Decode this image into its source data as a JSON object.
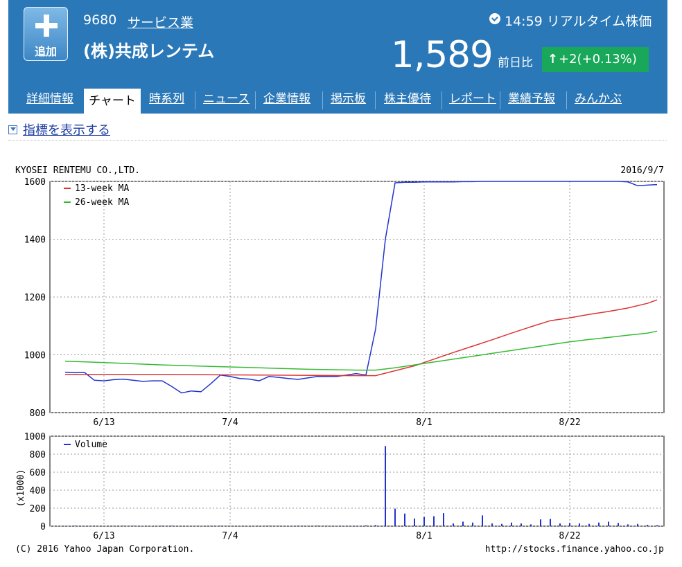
{
  "header": {
    "add_label": "追加",
    "code": "9680",
    "industry": "サービス業",
    "company": "(株)共成レンテム",
    "time": "14:59 リアルタイム株価",
    "price": "1,589",
    "prev_label": "前日比",
    "change": "+2(+0.13%)",
    "change_arrow": "↑",
    "accent": "#2a78b8",
    "up_color": "#19a85a"
  },
  "tabs": [
    {
      "label": "詳細情報"
    },
    {
      "label": "チャート"
    },
    {
      "label": "時系列"
    },
    {
      "label": "ニュース"
    },
    {
      "label": "企業情報"
    },
    {
      "label": "掲示板"
    },
    {
      "label": "株主優待"
    },
    {
      "label": "レポート"
    },
    {
      "label": "業績予報"
    },
    {
      "label": "みんかぶ"
    }
  ],
  "active_tab": 1,
  "indicator_label": "指標を表示する",
  "chart_data": [
    {
      "type": "line",
      "title": "KYOSEI RENTEMU CO.,LTD.",
      "date": "2016/9/7",
      "x_ticks": [
        "6/13",
        "7/4",
        "8/1",
        "8/22"
      ],
      "y_ticks": [
        800,
        1000,
        1200,
        1400,
        1600
      ],
      "ylim": [
        800,
        1600
      ],
      "grid": true,
      "legend_position": "top-left",
      "legend": [
        "13-week MA",
        "26-week MA"
      ],
      "series": [
        {
          "name": "price",
          "color": "#2233cc",
          "values": [
            [
              0,
              940
            ],
            [
              1,
              938
            ],
            [
              2,
              939
            ],
            [
              3,
              912
            ],
            [
              4,
              910
            ],
            [
              5,
              914
            ],
            [
              6,
              916
            ],
            [
              7,
              912
            ],
            [
              8,
              908
            ],
            [
              9,
              910
            ],
            [
              10,
              910
            ],
            [
              11,
              890
            ],
            [
              12,
              868
            ],
            [
              13,
              875
            ],
            [
              14,
              872
            ],
            [
              15,
              900
            ],
            [
              16,
              930
            ],
            [
              17,
              925
            ],
            [
              18,
              918
            ],
            [
              19,
              916
            ],
            [
              20,
              910
            ],
            [
              21,
              925
            ],
            [
              22,
              922
            ],
            [
              23,
              918
            ],
            [
              24,
              915
            ],
            [
              25,
              920
            ],
            [
              26,
              925
            ],
            [
              27,
              925
            ],
            [
              28,
              925
            ],
            [
              29,
              930
            ],
            [
              30,
              935
            ],
            [
              31,
              930
            ],
            [
              32,
              1090
            ],
            [
              33,
              1400
            ],
            [
              34,
              1595
            ],
            [
              35,
              1597
            ],
            [
              36,
              1597
            ],
            [
              37,
              1598
            ],
            [
              38,
              1598
            ],
            [
              39,
              1598
            ],
            [
              40,
              1598
            ],
            [
              41,
              1599
            ],
            [
              42,
              1599
            ],
            [
              43,
              1600
            ],
            [
              44,
              1600
            ],
            [
              45,
              1600
            ],
            [
              46,
              1600
            ],
            [
              47,
              1600
            ],
            [
              48,
              1600
            ],
            [
              49,
              1600
            ],
            [
              50,
              1600
            ],
            [
              51,
              1600
            ],
            [
              52,
              1600
            ],
            [
              53,
              1600
            ],
            [
              54,
              1600
            ],
            [
              55,
              1600
            ],
            [
              56,
              1600
            ],
            [
              57,
              1600
            ],
            [
              58,
              1598
            ],
            [
              59,
              1585
            ],
            [
              60,
              1587
            ],
            [
              61,
              1589
            ]
          ]
        },
        {
          "name": "13-week MA",
          "color": "#dd3333",
          "values": [
            [
              0,
              932
            ],
            [
              10,
              932
            ],
            [
              20,
              930
            ],
            [
              30,
              928
            ],
            [
              32,
              928
            ],
            [
              34,
              945
            ],
            [
              36,
              962
            ],
            [
              38,
              985
            ],
            [
              40,
              1008
            ],
            [
              42,
              1030
            ],
            [
              44,
              1052
            ],
            [
              46,
              1075
            ],
            [
              48,
              1097
            ],
            [
              50,
              1118
            ],
            [
              52,
              1128
            ],
            [
              54,
              1140
            ],
            [
              56,
              1150
            ],
            [
              58,
              1162
            ],
            [
              60,
              1178
            ],
            [
              61,
              1190
            ]
          ]
        },
        {
          "name": "26-week MA",
          "color": "#33bb33",
          "values": [
            [
              0,
              978
            ],
            [
              5,
              972
            ],
            [
              10,
              965
            ],
            [
              15,
              960
            ],
            [
              20,
              955
            ],
            [
              25,
              950
            ],
            [
              30,
              947
            ],
            [
              32,
              947
            ],
            [
              34,
              955
            ],
            [
              36,
              965
            ],
            [
              38,
              975
            ],
            [
              40,
              985
            ],
            [
              42,
              995
            ],
            [
              44,
              1005
            ],
            [
              46,
              1015
            ],
            [
              48,
              1025
            ],
            [
              50,
              1035
            ],
            [
              52,
              1045
            ],
            [
              54,
              1053
            ],
            [
              56,
              1060
            ],
            [
              58,
              1068
            ],
            [
              60,
              1075
            ],
            [
              61,
              1082
            ]
          ]
        }
      ]
    },
    {
      "type": "bar",
      "x_ticks": [
        "6/13",
        "7/4",
        "8/1",
        "8/22"
      ],
      "y_ticks": [
        0,
        200,
        400,
        600,
        800,
        1000
      ],
      "ylim": [
        0,
        1000
      ],
      "ylabel": "(x1000)",
      "legend": [
        "Volume"
      ],
      "legend_position": "top-left",
      "color": "#2233cc",
      "values": [
        [
          0,
          3
        ],
        [
          1,
          5
        ],
        [
          2,
          4
        ],
        [
          3,
          6
        ],
        [
          4,
          5
        ],
        [
          5,
          3
        ],
        [
          6,
          4
        ],
        [
          7,
          5
        ],
        [
          8,
          3
        ],
        [
          9,
          4
        ],
        [
          10,
          6
        ],
        [
          11,
          5
        ],
        [
          12,
          4
        ],
        [
          13,
          3
        ],
        [
          14,
          4
        ],
        [
          15,
          5
        ],
        [
          16,
          4
        ],
        [
          17,
          3
        ],
        [
          18,
          5
        ],
        [
          19,
          4
        ],
        [
          20,
          3
        ],
        [
          21,
          4
        ],
        [
          22,
          5
        ],
        [
          23,
          3
        ],
        [
          24,
          6
        ],
        [
          25,
          4
        ],
        [
          26,
          5
        ],
        [
          27,
          3
        ],
        [
          28,
          4
        ],
        [
          29,
          5
        ],
        [
          30,
          3
        ],
        [
          31,
          8
        ],
        [
          32,
          12
        ],
        [
          33,
          890
        ],
        [
          34,
          195
        ],
        [
          35,
          140
        ],
        [
          36,
          85
        ],
        [
          37,
          100
        ],
        [
          38,
          110
        ],
        [
          39,
          145
        ],
        [
          40,
          30
        ],
        [
          41,
          50
        ],
        [
          42,
          40
        ],
        [
          43,
          120
        ],
        [
          44,
          30
        ],
        [
          45,
          25
        ],
        [
          46,
          40
        ],
        [
          47,
          30
        ],
        [
          48,
          20
        ],
        [
          49,
          75
        ],
        [
          50,
          80
        ],
        [
          51,
          30
        ],
        [
          52,
          35
        ],
        [
          53,
          30
        ],
        [
          54,
          25
        ],
        [
          55,
          40
        ],
        [
          56,
          50
        ],
        [
          57,
          35
        ],
        [
          58,
          20
        ],
        [
          59,
          25
        ],
        [
          60,
          15
        ],
        [
          61,
          10
        ]
      ]
    }
  ],
  "footer": {
    "copyright": "(C) 2016 Yahoo Japan Corporation.",
    "url": "http://stocks.finance.yahoo.co.jp"
  }
}
